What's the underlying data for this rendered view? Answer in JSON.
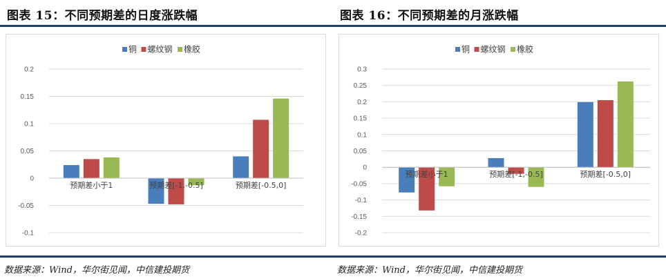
{
  "panels": [
    {
      "figure_title": "图表 15：不同预期差的日度涨跌幅",
      "source": "数据来源：Wind，华尔街见闻，中信建投期货"
    },
    {
      "figure_title": "图表 16：不同预期差的月涨跌幅",
      "source": "数据来源：Wind，华尔街见闻，中信建投期货"
    }
  ],
  "colors": {
    "copper": "#4a7ebb",
    "rebar": "#be4b48",
    "rubber": "#98b954",
    "rule": "#1f3f6b",
    "grid": "#d9d9d9"
  },
  "chart_data": [
    {
      "type": "bar",
      "categories": [
        "预期差小于1",
        "预期差[-1,-0.5]",
        "预期差[-0.5,0]"
      ],
      "series": [
        {
          "name": "铜",
          "values": [
            0.024,
            -0.047,
            0.04
          ]
        },
        {
          "name": "螺纹钢",
          "values": [
            0.035,
            -0.048,
            0.107
          ]
        },
        {
          "name": "橡胶",
          "values": [
            0.038,
            -0.013,
            0.146
          ]
        }
      ],
      "ylim": [
        -0.1,
        0.2
      ],
      "yticks": [
        0.2,
        0.15,
        0.1,
        0.05,
        0,
        -0.05,
        -0.1
      ],
      "ytick_labels": [
        "0.2",
        "0.15",
        "0.1",
        "0.05",
        "0",
        "-0.05",
        "-0.1"
      ],
      "grid": true,
      "legend": "top-center"
    },
    {
      "type": "bar",
      "categories": [
        "预期差小于1",
        "预期差[-1,-0.5]",
        "预期差[-0.5,0]"
      ],
      "series": [
        {
          "name": "铜",
          "values": [
            -0.077,
            0.028,
            0.199
          ]
        },
        {
          "name": "螺纹钢",
          "values": [
            -0.132,
            -0.02,
            0.205
          ]
        },
        {
          "name": "橡胶",
          "values": [
            -0.058,
            -0.06,
            0.262
          ]
        }
      ],
      "ylim": [
        -0.2,
        0.3
      ],
      "yticks": [
        0.3,
        0.25,
        0.2,
        0.15,
        0.1,
        0.05,
        0,
        -0.05,
        -0.1,
        -0.15,
        -0.2
      ],
      "ytick_labels": [
        "0.3",
        "0.25",
        "0.2",
        "0.15",
        "0.1",
        "0.05",
        "0",
        "-0.05",
        "-0.1",
        "-0.15",
        "-0.2"
      ],
      "grid": true,
      "legend": "top-center"
    }
  ]
}
